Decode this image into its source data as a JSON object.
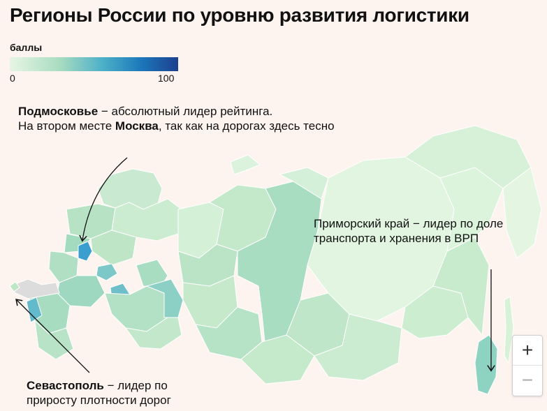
{
  "title": "Регионы России по уровню развития логистики",
  "legend": {
    "title": "баллы",
    "min": "0",
    "max": "100",
    "colors": [
      "#e7f5e4",
      "#a8dcc0",
      "#4db0c8",
      "#1c78bb",
      "#1c3f8f"
    ]
  },
  "annotations": {
    "moscow": {
      "bold1": "Подмосковье",
      "text1": " − абсолютный лидер рейтинга.",
      "text2": "На втором месте ",
      "bold2": "Москва",
      "text3": ", так как на дорогах здесь тесно"
    },
    "primorye": {
      "text": "Приморский край − лидер по доле транспорта и хранения в ВРП"
    },
    "sevastopol": {
      "bold": "Севастополь",
      "text": " − лидер по приросту плотности дорог"
    }
  },
  "zoom": {
    "in": "+",
    "out": "−"
  },
  "colors": {
    "background": "#fdf4f0",
    "region_base": "#c7e8c9",
    "leader": "#3a9fcf",
    "no_data": "#dcdcdc"
  }
}
